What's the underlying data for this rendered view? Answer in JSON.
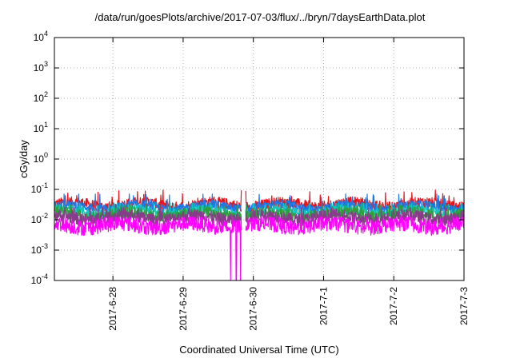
{
  "chart_data": {
    "type": "line",
    "title": "/data/run/goesPlots/archive/2017-07-03/flux/../bryn/7daysEarthData.plot",
    "xlabel": "Coordinated Universal Time (UTC)",
    "ylabel": "cGy/day",
    "x_range": [
      "2017-06-27 04:00",
      "2017-07-03 00:00"
    ],
    "xticks": [
      "2017-6-28",
      "2017-6-29",
      "2017-6-30",
      "2017-7-1",
      "2017-7-2",
      "2017-7-3"
    ],
    "y_scale": "log",
    "ylim": [
      0.0001,
      10000
    ],
    "yticks": [
      {
        "base": "10",
        "exp": "-4"
      },
      {
        "base": "10",
        "exp": "-3"
      },
      {
        "base": "10",
        "exp": "-2"
      },
      {
        "base": "10",
        "exp": "-1"
      },
      {
        "base": "10",
        "exp": "0"
      },
      {
        "base": "10",
        "exp": "1"
      },
      {
        "base": "10",
        "exp": "2"
      },
      {
        "base": "10",
        "exp": "3"
      },
      {
        "base": "10",
        "exp": "4"
      }
    ],
    "grid": true,
    "data_gap": {
      "start": "2017-06-29 20:00",
      "end": "2017-06-29 21:20"
    },
    "dropouts": [
      "2017-06-29 16:10",
      "2017-06-29 18:10",
      "2017-06-29 19:40"
    ],
    "series": [
      {
        "color": "#e8141b",
        "baseline": 0.032,
        "spread": 0.18,
        "spike_max": 0.095
      },
      {
        "color": "#1f78e6",
        "baseline": 0.027,
        "spread": 0.15,
        "spike_max": 0.07
      },
      {
        "color": "#11c6c0",
        "baseline": 0.019,
        "spread": 0.16,
        "spike_max": 0.035
      },
      {
        "color": "#2e9e3a",
        "baseline": 0.015,
        "spread": 0.2,
        "spike_max": 0.03
      },
      {
        "color": "#8a3a8a",
        "baseline": 0.012,
        "spread": 0.2,
        "spike_max": 0.025
      },
      {
        "color": "#ff00ff",
        "baseline": 0.0065,
        "spread": 0.25,
        "spike_max": 0.012,
        "min": 0.0028
      }
    ]
  }
}
